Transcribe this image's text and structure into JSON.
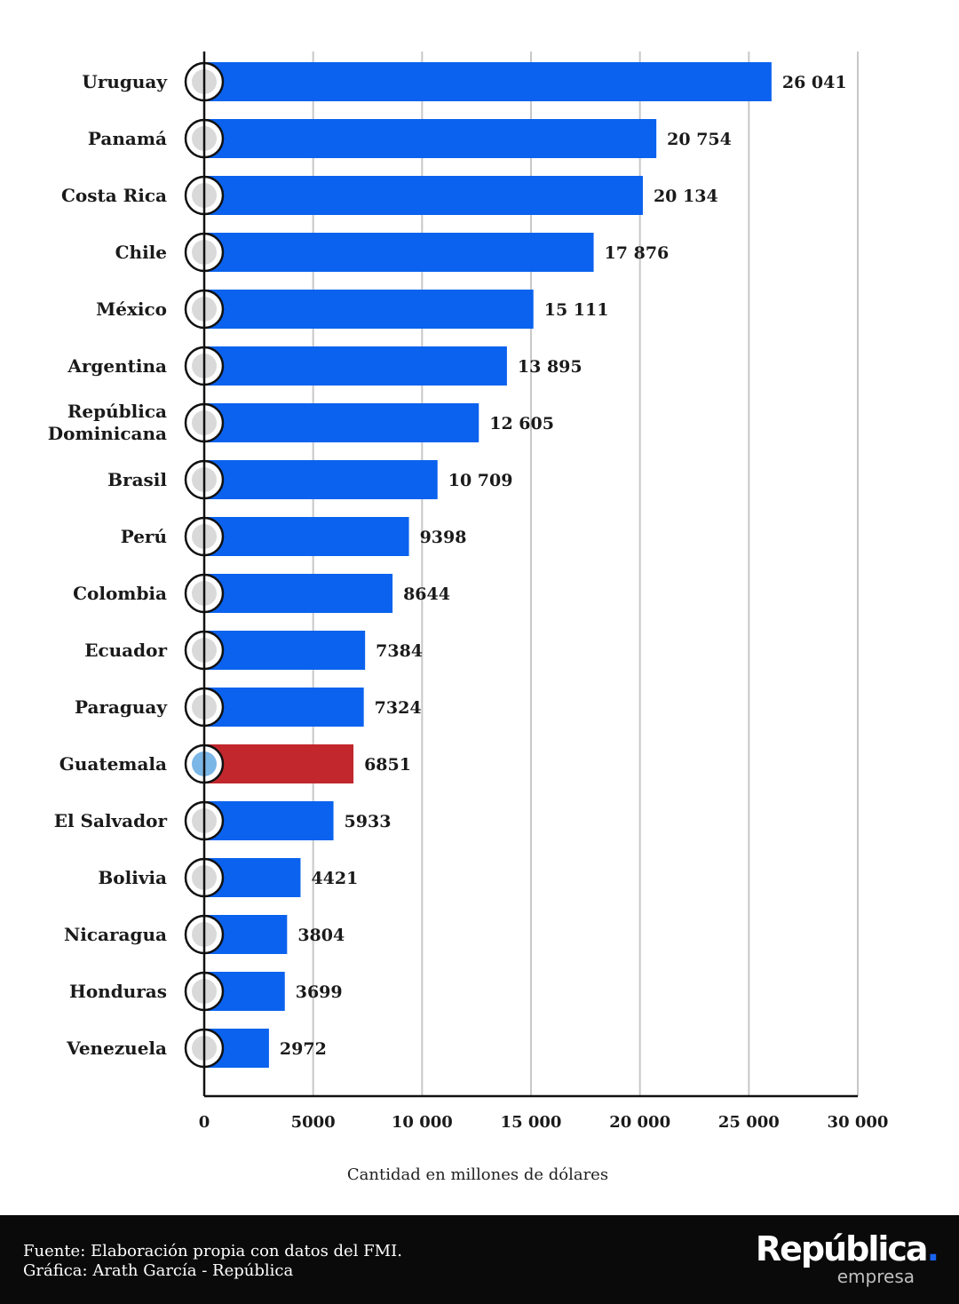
{
  "chart_data": {
    "type": "bar",
    "orientation": "horizontal",
    "categories": [
      "Uruguay",
      "Panamá",
      "Costa Rica",
      "Chile",
      "México",
      "Argentina",
      "República Dominicana",
      "Brasil",
      "Perú",
      "Colombia",
      "Ecuador",
      "Paraguay",
      "Guatemala",
      "El Salvador",
      "Bolivia",
      "Nicaragua",
      "Honduras",
      "Venezuela"
    ],
    "category_lines": [
      [
        "Uruguay"
      ],
      [
        "Panamá"
      ],
      [
        "Costa Rica"
      ],
      [
        "Chile"
      ],
      [
        "México"
      ],
      [
        "Argentina"
      ],
      [
        "República",
        "Dominicana"
      ],
      [
        "Brasil"
      ],
      [
        "Perú"
      ],
      [
        "Colombia"
      ],
      [
        "Ecuador"
      ],
      [
        "Paraguay"
      ],
      [
        "Guatemala"
      ],
      [
        "El Salvador"
      ],
      [
        "Bolivia"
      ],
      [
        "Nicaragua"
      ],
      [
        "Honduras"
      ],
      [
        "Venezuela"
      ]
    ],
    "values": [
      26041,
      20754,
      20134,
      17876,
      15111,
      13895,
      12605,
      10709,
      9398,
      8644,
      7384,
      7324,
      6851,
      5933,
      4421,
      3804,
      3699,
      2972
    ],
    "value_labels": [
      "26 041",
      "20 754",
      "20 134",
      "17 876",
      "15 111",
      "13 895",
      "12 605",
      "10 709",
      "9398",
      "8644",
      "7384",
      "7324",
      "6851",
      "5933",
      "4421",
      "3804",
      "3699",
      "2972"
    ],
    "highlight": "Guatemala",
    "xlim": [
      0,
      30000
    ],
    "xticks": [
      0,
      5000,
      10000,
      15000,
      20000,
      25000,
      30000
    ],
    "xtick_labels": [
      "0",
      "5000",
      "10 000",
      "15 000",
      "20 000",
      "25 000",
      "30 000"
    ],
    "xlabel": "Cantidad en millones de dólares",
    "ylabel": "",
    "grid": true,
    "colors": {
      "bar": "#0a62ee",
      "highlight": "#c1272d",
      "grid": "#c8c8c8",
      "axis": "#111111"
    }
  },
  "footer": {
    "source": "Fuente: Elaboración propia con datos del FMI.",
    "credit": "Gráfica: Arath García - República"
  },
  "brand": {
    "name": "República",
    "dot": ".",
    "tagline": "empresa"
  }
}
